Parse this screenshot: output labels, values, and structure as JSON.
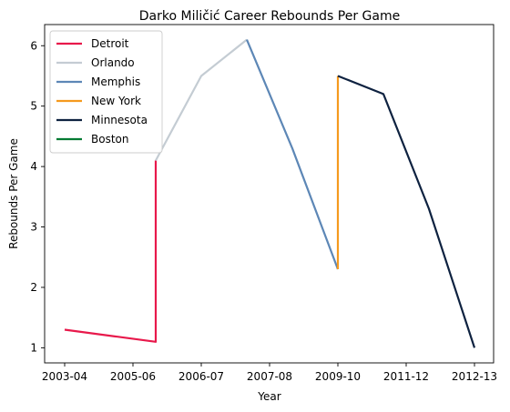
{
  "chart_data": {
    "type": "line",
    "title": "Darko Miličić Career Rebounds Per Game",
    "xlabel": "Year",
    "ylabel": "Rebounds Per Game",
    "x_ticks": [
      "2003-04",
      "2005-06",
      "2006-07",
      "2007-08",
      "2009-10",
      "2011-12",
      "2012-13"
    ],
    "ylim": [
      0.75,
      6.35
    ],
    "y_ticks": [
      1,
      2,
      3,
      4,
      5,
      6
    ],
    "grid": false,
    "legend_position": "top-left",
    "series": [
      {
        "name": "Detroit",
        "color": "#e8194b",
        "points": [
          [
            0,
            1.3
          ],
          [
            2,
            1.1
          ],
          [
            2,
            4.1
          ]
        ]
      },
      {
        "name": "Orlando",
        "color": "#c4ccd3",
        "points": [
          [
            2,
            4.1
          ],
          [
            3,
            5.5
          ],
          [
            4,
            6.1
          ]
        ]
      },
      {
        "name": "Memphis",
        "color": "#5d87b6",
        "points": [
          [
            4,
            6.1
          ],
          [
            5,
            4.3
          ],
          [
            6,
            2.3
          ]
        ]
      },
      {
        "name": "New York",
        "color": "#f59a1e",
        "points": [
          [
            6,
            2.3
          ],
          [
            6,
            5.5
          ]
        ]
      },
      {
        "name": "Minnesota",
        "color": "#0e2240",
        "points": [
          [
            6,
            5.5
          ],
          [
            7,
            5.2
          ],
          [
            8,
            3.3
          ],
          [
            9,
            1.0
          ]
        ]
      },
      {
        "name": "Boston",
        "color": "#007a33",
        "points": []
      }
    ]
  }
}
